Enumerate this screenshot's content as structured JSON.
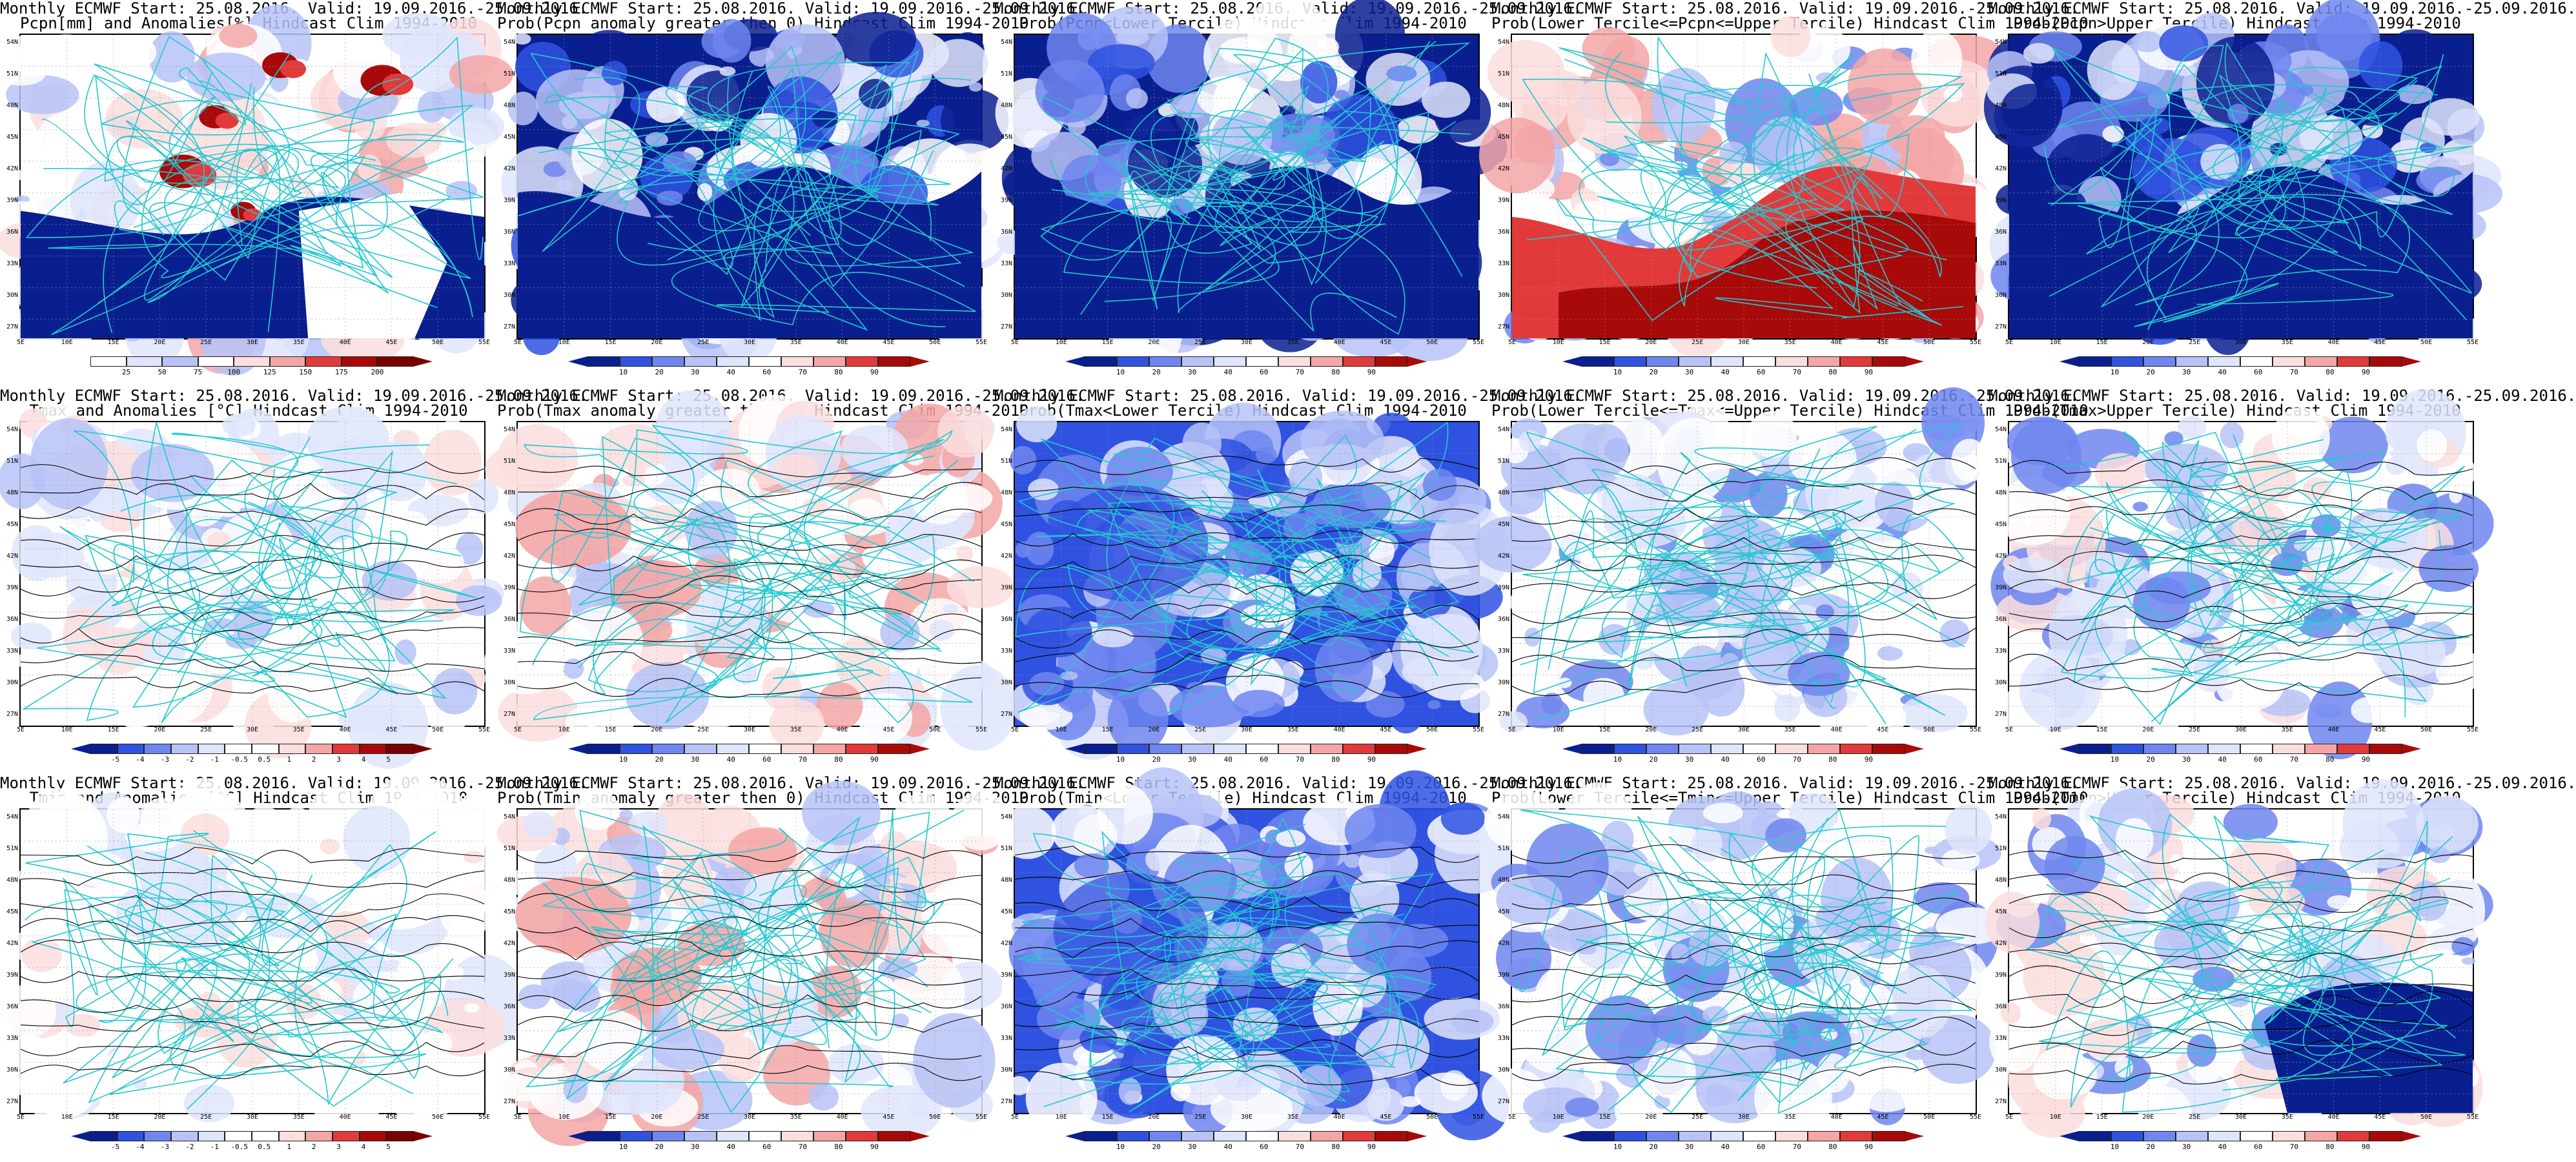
{
  "figure": {
    "colors": {
      "deep_blue": "#0a1f8f",
      "blue": "#2f52e0",
      "mid_blue": "#6f86f0",
      "light_blue": "#b7c3f7",
      "pale_blue": "#dfe5fb",
      "pale_red": "#fbdede",
      "light_red": "#f4a6a6",
      "red": "#e23a3a",
      "dark_red": "#a80a0a",
      "coast": "#22c8d0",
      "contour": "#000000"
    },
    "lat_labels": [
      "54N",
      "51N",
      "48N",
      "45N",
      "42N",
      "39N",
      "36N",
      "33N",
      "30N",
      "27N"
    ],
    "lon_labels": [
      "5E",
      "10E",
      "15E",
      "20E",
      "25E",
      "30E",
      "35E",
      "40E",
      "45E",
      "50E",
      "55E"
    ],
    "panels": [
      {
        "title_line1": "Monthly ECMWF Start: 25.08.2016. Valid: 19.09.2016.-25.09.2016.",
        "title_line2": "Pcpn[mm] and Anomalies[%] Hindcast Clim 1994-2010",
        "theme": "precip_anom",
        "colorbar": [
          "25",
          "50",
          "75",
          "100",
          "125",
          "150",
          "175",
          "200"
        ],
        "colorbar_kind": "precip"
      },
      {
        "title_line1": "Monthly ECMWF Start: 25.08.2016. Valid: 19.09.2016.-25.09.2016.",
        "title_line2": "Prob(Pcpn anomaly greater then 0) Hindcast Clim 1994-2010",
        "theme": "precip_prob",
        "colorbar": [
          "10",
          "20",
          "30",
          "40",
          "60",
          "70",
          "80",
          "90"
        ],
        "colorbar_kind": "prob"
      },
      {
        "title_line1": "Monthly ECMWF Start: 25.08.2016. Valid: 19.09.2016.-25.09.2016.",
        "title_line2": "Prob(Pcpn<Lower Tercile) Hindcast Clim 1994-2010",
        "theme": "precip_prob",
        "colorbar": [
          "10",
          "20",
          "30",
          "40",
          "60",
          "70",
          "80",
          "90"
        ],
        "colorbar_kind": "prob"
      },
      {
        "title_line1": "Monthly ECMWF Start: 25.08.2016. Valid: 19.09.2016.-25.09.2016.",
        "title_line2": "Prob(Lower Tercile<=Pcpn<=Upper Tercile) Hindcast Clim 1994-2010",
        "theme": "precip_mid",
        "colorbar": [
          "10",
          "20",
          "30",
          "40",
          "60",
          "70",
          "80",
          "90"
        ],
        "colorbar_kind": "prob"
      },
      {
        "title_line1": "Monthly ECMWF Start: 25.08.2016. Valid: 19.09.2016.-25.09.2016.",
        "title_line2": "Prob(Pcpn>Upper Tercile) Hindcast Clim 1994-2010",
        "theme": "precip_prob",
        "colorbar": [
          "10",
          "20",
          "30",
          "40",
          "60",
          "70",
          "80",
          "90"
        ],
        "colorbar_kind": "prob"
      },
      {
        "title_line1": "Monthly ECMWF Start: 25.08.2016. Valid: 19.09.2016.-25.09.2016.",
        "title_line2": "Tmax and Anomalies [°C] Hindcast Clim 1994-2010",
        "theme": "temp_anom",
        "colorbar": [
          "-5",
          "-4",
          "-3",
          "-2",
          "-1",
          "-0.5",
          "0.5",
          "1",
          "2",
          "3",
          "4",
          "5"
        ],
        "colorbar_kind": "anom"
      },
      {
        "title_line1": "Monthly ECMWF Start: 25.08.2016. Valid: 19.09.2016.-25.09.2016.",
        "title_line2": "Prob(Tmax anomaly greater then 0) Hindcast Clim 1994-2010",
        "theme": "temp_warm",
        "colorbar": [
          "10",
          "20",
          "30",
          "40",
          "60",
          "70",
          "80",
          "90"
        ],
        "colorbar_kind": "prob"
      },
      {
        "title_line1": "Monthly ECMWF Start: 25.08.2016. Valid: 19.09.2016.-25.09.2016.",
        "title_line2": "Prob(Tmax<Lower Tercile) Hindcast Clim 1994-2010",
        "theme": "temp_cold",
        "colorbar": [
          "10",
          "20",
          "30",
          "40",
          "60",
          "70",
          "80",
          "90"
        ],
        "colorbar_kind": "prob"
      },
      {
        "title_line1": "Monthly ECMWF Start: 25.08.2016. Valid: 19.09.2016.-25.09.2016.",
        "title_line2": "Prob(Lower Tercile<=Tmax<=Upper Tercile) Hindcast Clim 1994-2010",
        "theme": "temp_mid",
        "colorbar": [
          "10",
          "20",
          "30",
          "40",
          "60",
          "70",
          "80",
          "90"
        ],
        "colorbar_kind": "prob"
      },
      {
        "title_line1": "Monthly ECMWF Start: 25.08.2016. Valid: 19.09.2016.-25.09.2016.",
        "title_line2": "Prob(Tmax>Upper Tercile) Hindcast Clim 1994-2010",
        "theme": "temp_mixed",
        "colorbar": [
          "10",
          "20",
          "30",
          "40",
          "60",
          "70",
          "80",
          "90"
        ],
        "colorbar_kind": "prob"
      },
      {
        "title_line1": "Monthly ECMWF Start: 25.08.2016. Valid: 19.09.2016.-25.09.2016.",
        "title_line2": "Tmin and Anomalies [°C] Hindcast Clim 1994-2010",
        "theme": "temp_anom_w",
        "colorbar": [
          "-5",
          "-4",
          "-3",
          "-2",
          "-1",
          "-0.5",
          "0.5",
          "1",
          "2",
          "3",
          "4",
          "5"
        ],
        "colorbar_kind": "anom"
      },
      {
        "title_line1": "Monthly ECMWF Start: 25.08.2016. Valid: 19.09.2016.-25.09.2016.",
        "title_line2": "Prob(Tmin anomaly greater then 0) Hindcast Clim 1994-2010",
        "theme": "temp_warm",
        "colorbar": [
          "10",
          "20",
          "30",
          "40",
          "60",
          "70",
          "80",
          "90"
        ],
        "colorbar_kind": "prob"
      },
      {
        "title_line1": "Monthly ECMWF Start: 25.08.2016. Valid: 19.09.2016.-25.09.2016.",
        "title_line2": "Prob(Tmin<Lower Tercile) Hindcast Clim 1994-2010",
        "theme": "temp_cold",
        "colorbar": [
          "10",
          "20",
          "30",
          "40",
          "60",
          "70",
          "80",
          "90"
        ],
        "colorbar_kind": "prob"
      },
      {
        "title_line1": "Monthly ECMWF Start: 25.08.2016. Valid: 19.09.2016.-25.09.2016.",
        "title_line2": "Prob(Lower Tercile<=Tmin<=Upper Tercile) Hindcast Clim 1994-2010",
        "theme": "temp_mid",
        "colorbar": [
          "10",
          "20",
          "30",
          "40",
          "60",
          "70",
          "80",
          "90"
        ],
        "colorbar_kind": "prob"
      },
      {
        "title_line1": "Monthly ECMWF Start: 25.08.2016. Valid: 19.09.2016.-25.09.2016.",
        "title_line2": "Prob(Tmin>Upper Tercile) Hindcast Clim 1994-2010",
        "theme": "temp_cold_se",
        "colorbar": [
          "10",
          "20",
          "30",
          "40",
          "60",
          "70",
          "80",
          "90"
        ],
        "colorbar_kind": "prob"
      }
    ]
  }
}
